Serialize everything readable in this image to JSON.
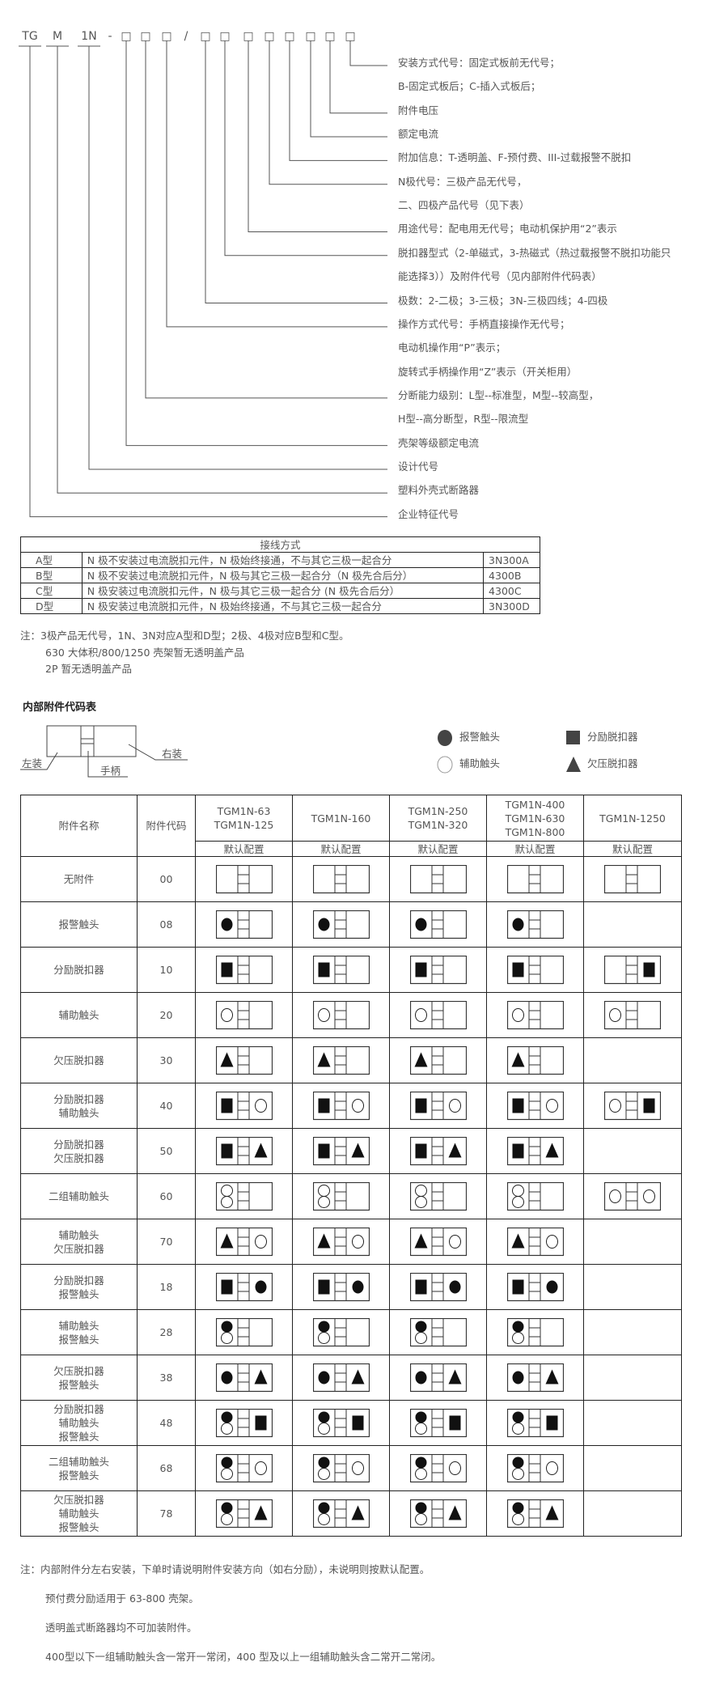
{
  "model_code": {
    "parts": [
      "TG",
      "M",
      "1N",
      "-",
      "□",
      "□",
      "□",
      "/",
      "□",
      "□",
      "□",
      "□",
      "□",
      "□",
      "□",
      "□"
    ]
  },
  "code_explanations": [
    "安装方式代号：固定式板前无代号；",
    "B-固定式板后；C-插入式板后；",
    "附件电压",
    "额定电流",
    "附加信息：T-透明盖、F-预付费、III-过载报警不脱扣",
    "N极代号：三极产品无代号，",
    "二、四极产品代号（见下表）",
    "用途代号：配电用无代号；电动机保护用“2”表示",
    "脱扣器型式（2-单磁式，3-热磁式（热过载报警不脱扣功能只",
    "能选择3））及附件代号（见内部附件代码表）",
    "极数：2-二极；3-三极；3N-三极四线；4-四极",
    "操作方式代号：手柄直接操作无代号；",
    "电动机操作用“P”表示；",
    "旋转式手柄操作用“Z”表示（开关柜用）",
    "分断能力级别：L型--标准型，M型--较高型，",
    "H型--高分断型，R型--限流型",
    "壳架等级额定电流",
    "设计代号",
    "塑料外壳式断路器",
    "企业特征代号"
  ],
  "wiring_table": {
    "title": "接线方式",
    "rows": [
      {
        "type": "A型",
        "desc": "N 极不安装过电流脱扣元件，N 极始终接通，不与其它三极一起合分",
        "code": "3N300A"
      },
      {
        "type": "B型",
        "desc": "N 极不安装过电流脱扣元件，N 极与其它三极一起合分（N 极先合后分）",
        "code": "4300B"
      },
      {
        "type": "C型",
        "desc": "N 极安装过电流脱扣元件，N 极与其它三极一起合分 (N 极先合后分）",
        "code": "4300C"
      },
      {
        "type": "D型",
        "desc": "N 极安装过电流脱扣元件，N 极始终接通，不与其它三极一起合分",
        "code": "3N300D"
      }
    ]
  },
  "wiring_notes": [
    "注：3极产品无代号，1N、3N对应A型和D型；2极、4极对应B型和C型。",
    "630 大体积/800/1250 壳架暂无透明盖产品",
    "2P 暂无透明盖产品"
  ],
  "accessory_section": {
    "title": "内部附件代码表",
    "diagram_labels": {
      "left": "左装",
      "right": "右装",
      "handle": "手柄"
    },
    "legend": [
      {
        "symbol": "alarm",
        "label": "报警触头"
      },
      {
        "symbol": "shunt",
        "label": "分励脱扣器"
      },
      {
        "symbol": "aux",
        "label": "辅助触头"
      },
      {
        "symbol": "uv",
        "label": "欠压脱扣器"
      }
    ]
  },
  "accessory_table": {
    "headers": {
      "name": "附件名称",
      "code": "附件代码",
      "models": [
        [
          "TGM1N-63",
          "TGM1N-125"
        ],
        [
          "TGM1N-160"
        ],
        [
          "TGM1N-250",
          "TGM1N-320"
        ],
        [
          "TGM1N-400",
          "TGM1N-630",
          "TGM1N-800"
        ],
        [
          "TGM1N-1250"
        ]
      ],
      "sub": [
        "默认配置",
        "默认配置",
        "默认配置",
        "默认配置",
        "默认配置"
      ]
    },
    "rows": [
      {
        "name": [
          "无附件"
        ],
        "code": "00",
        "cfg": [
          [
            "",
            ""
          ],
          [
            "",
            ""
          ],
          [
            "",
            ""
          ],
          [
            "",
            ""
          ],
          [
            "",
            ""
          ]
        ]
      },
      {
        "name": [
          "报警触头"
        ],
        "code": "08",
        "cfg": [
          [
            "alarm",
            ""
          ],
          [
            "alarm",
            ""
          ],
          [
            "alarm",
            ""
          ],
          [
            "alarm",
            ""
          ],
          null
        ]
      },
      {
        "name": [
          "分励脱扣器"
        ],
        "code": "10",
        "cfg": [
          [
            "shunt",
            ""
          ],
          [
            "shunt",
            ""
          ],
          [
            "shunt",
            ""
          ],
          [
            "shunt",
            ""
          ],
          [
            "",
            "shunt"
          ]
        ]
      },
      {
        "name": [
          "辅助触头"
        ],
        "code": "20",
        "cfg": [
          [
            "aux",
            ""
          ],
          [
            "aux",
            ""
          ],
          [
            "aux",
            ""
          ],
          [
            "aux",
            ""
          ],
          [
            "aux",
            ""
          ]
        ]
      },
      {
        "name": [
          "欠压脱扣器"
        ],
        "code": "30",
        "cfg": [
          [
            "uv",
            ""
          ],
          [
            "uv",
            ""
          ],
          [
            "uv",
            ""
          ],
          [
            "uv",
            ""
          ],
          null
        ]
      },
      {
        "name": [
          "分励脱扣器",
          "辅助触头"
        ],
        "code": "40",
        "cfg": [
          [
            "shunt",
            "aux"
          ],
          [
            "shunt",
            "aux"
          ],
          [
            "shunt",
            "aux"
          ],
          [
            "shunt",
            "aux"
          ],
          [
            "aux",
            "shunt"
          ]
        ]
      },
      {
        "name": [
          "分励脱扣器",
          "欠压脱扣器"
        ],
        "code": "50",
        "cfg": [
          [
            "shunt",
            "uv"
          ],
          [
            "shunt",
            "uv"
          ],
          [
            "shunt",
            "uv"
          ],
          [
            "shunt",
            "uv"
          ],
          null
        ]
      },
      {
        "name": [
          "二组辅助触头"
        ],
        "code": "60",
        "cfg": [
          [
            "aux2",
            ""
          ],
          [
            "aux2",
            ""
          ],
          [
            "aux2",
            ""
          ],
          [
            "aux2",
            ""
          ],
          [
            "aux",
            "aux"
          ]
        ]
      },
      {
        "name": [
          "辅助触头",
          "欠压脱扣器"
        ],
        "code": "70",
        "cfg": [
          [
            "uv",
            "aux"
          ],
          [
            "uv",
            "aux"
          ],
          [
            "uv",
            "aux"
          ],
          [
            "uv",
            "aux"
          ],
          null
        ]
      },
      {
        "name": [
          "分励脱扣器",
          "报警触头"
        ],
        "code": "18",
        "cfg": [
          [
            "shunt",
            "alarm"
          ],
          [
            "shunt",
            "alarm"
          ],
          [
            "shunt",
            "alarm"
          ],
          [
            "shunt",
            "alarm"
          ],
          null
        ]
      },
      {
        "name": [
          "辅助触头",
          "报警触头"
        ],
        "code": "28",
        "cfg": [
          [
            "alarm_aux",
            ""
          ],
          [
            "alarm_aux",
            ""
          ],
          [
            "alarm_aux",
            ""
          ],
          [
            "alarm_aux",
            ""
          ],
          null
        ]
      },
      {
        "name": [
          "欠压脱扣器",
          "报警触头"
        ],
        "code": "38",
        "cfg": [
          [
            "alarm",
            "uv"
          ],
          [
            "alarm",
            "uv"
          ],
          [
            "alarm",
            "uv"
          ],
          [
            "alarm",
            "uv"
          ],
          null
        ]
      },
      {
        "name": [
          "分励脱扣器",
          "辅助触头",
          "报警触头"
        ],
        "code": "48",
        "cfg": [
          [
            "alarm_aux",
            "shunt"
          ],
          [
            "alarm_aux",
            "shunt"
          ],
          [
            "alarm_aux",
            "shunt"
          ],
          [
            "alarm_aux",
            "shunt"
          ],
          null
        ]
      },
      {
        "name": [
          "二组辅助触头",
          "报警触头"
        ],
        "code": "68",
        "cfg": [
          [
            "alarm_aux",
            "aux"
          ],
          [
            "alarm_aux",
            "aux"
          ],
          [
            "alarm_aux",
            "aux"
          ],
          [
            "alarm_aux",
            "aux"
          ],
          null
        ]
      },
      {
        "name": [
          "欠压脱扣器",
          "辅助触头",
          "报警触头"
        ],
        "code": "78",
        "cfg": [
          [
            "alarm_aux",
            "uv"
          ],
          [
            "alarm_aux",
            "uv"
          ],
          [
            "alarm_aux",
            "uv"
          ],
          [
            "alarm_aux",
            "uv"
          ],
          null
        ]
      }
    ]
  },
  "bottom_notes": [
    "注：内部附件分左右安装，下单时请说明附件安装方向（如右分励），未说明则按默认配置。",
    "预付费分励适用于 63-800 壳架。",
    "透明盖式断路器均不可加装附件。",
    "400型以下一组辅助触头含一常开一常闭，400 型及以上一组辅助触头含二常开二常闭。"
  ],
  "colors": {
    "text": "#555555",
    "line": "#222222",
    "symbol_fill": "#111111"
  }
}
